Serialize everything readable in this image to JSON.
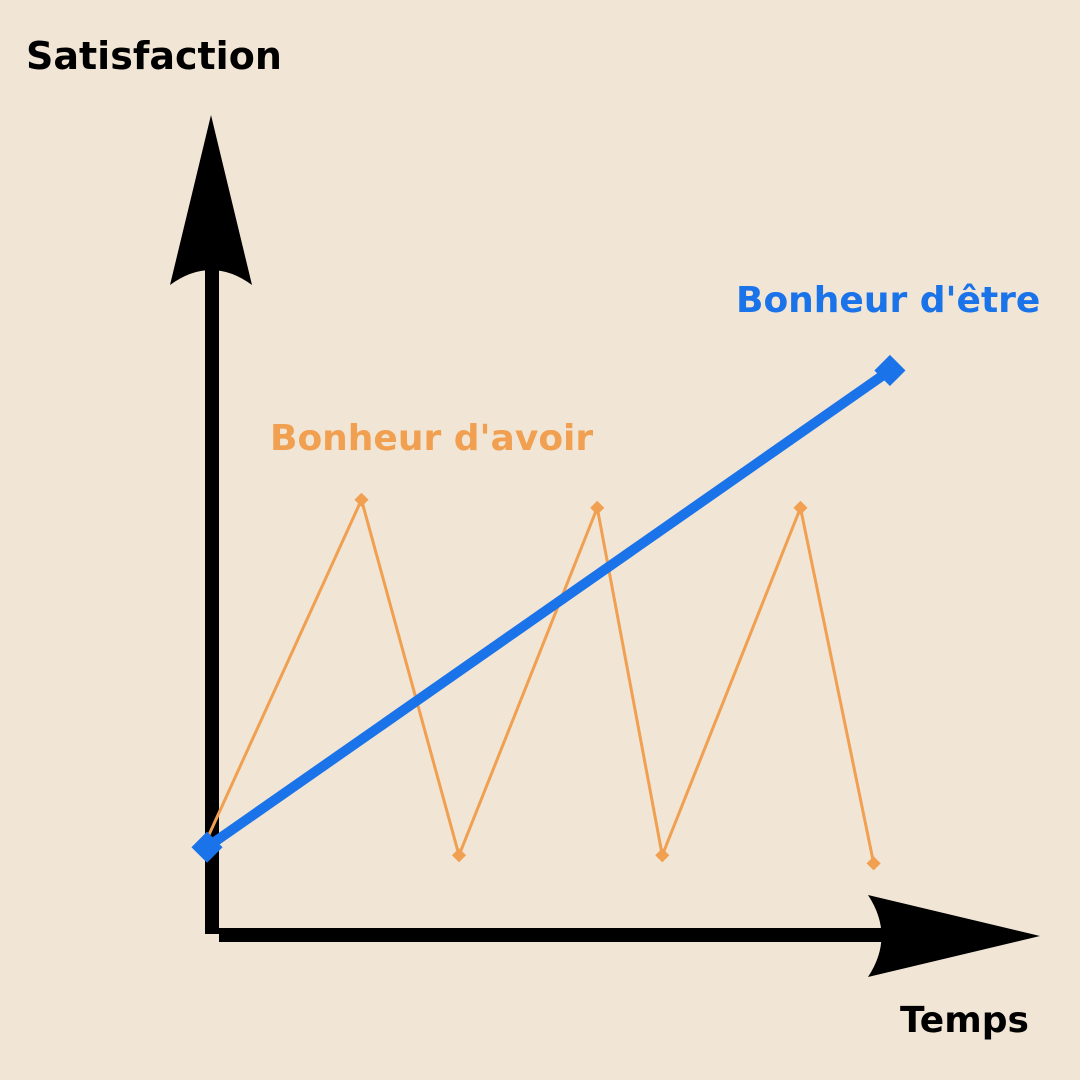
{
  "chart_data": {
    "type": "line",
    "title": "",
    "ylabel": "Satisfaction",
    "xlabel": "Temps",
    "xlim": [
      0,
      10
    ],
    "ylim": [
      0,
      10
    ],
    "grid": false,
    "ticks": false,
    "series": [
      {
        "name": "Bonheur d'avoir",
        "color": "#f0a050",
        "points": [
          [
            0,
            1.1
          ],
          [
            1.9,
            5.3
          ],
          [
            3.1,
            0.9
          ],
          [
            4.8,
            5.2
          ],
          [
            5.6,
            0.9
          ],
          [
            7.3,
            5.2
          ],
          [
            8.2,
            0.8
          ]
        ]
      },
      {
        "name": "Bonheur d'être",
        "color": "#1a73e8",
        "points": [
          [
            0,
            1.0
          ],
          [
            8.4,
            6.9
          ]
        ]
      }
    ]
  },
  "colors": {
    "background": "#f1e5d5",
    "axis": "#000000"
  }
}
